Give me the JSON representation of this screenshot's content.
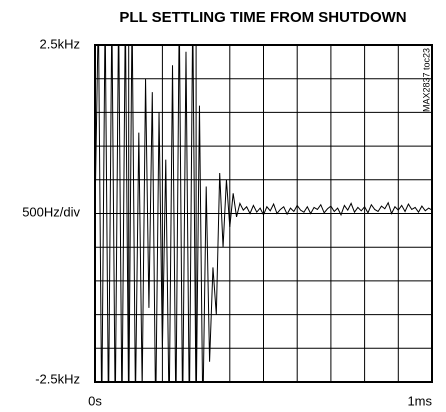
{
  "chart_data": {
    "type": "line",
    "title": "PLL SETTLING TIME FROM SHUTDOWN",
    "y_label": "500Hz/div",
    "note": "MAX2837 toc23",
    "xlim": [
      0,
      1
    ],
    "ylim": [
      -2.5,
      2.5
    ],
    "xticks": [
      {
        "value": 0,
        "label": "0s"
      },
      {
        "value": 1,
        "label": "1ms"
      }
    ],
    "yticks": [
      {
        "value": -2.5,
        "label": "-2.5kHz"
      },
      {
        "value": 2.5,
        "label": "2.5kHz"
      }
    ],
    "grid": {
      "x": [
        0,
        0.1,
        0.2,
        0.3,
        0.4,
        0.5,
        0.6,
        0.7,
        0.8,
        0.9,
        1
      ],
      "y": [
        -2.5,
        -2,
        -1.5,
        -1,
        -0.5,
        0,
        0.5,
        1,
        1.5,
        2,
        2.5
      ]
    },
    "color": "#000000",
    "x": [
      0,
      0.01,
      0.02,
      0.03,
      0.04,
      0.05,
      0.06,
      0.07,
      0.08,
      0.09,
      0.1,
      0.11,
      0.12,
      0.13,
      0.14,
      0.15,
      0.16,
      0.17,
      0.18,
      0.19,
      0.2,
      0.21,
      0.22,
      0.23,
      0.24,
      0.25,
      0.26,
      0.27,
      0.28,
      0.29,
      0.3,
      0.31,
      0.32,
      0.33,
      0.34,
      0.35,
      0.36,
      0.37,
      0.38,
      0.39,
      0.4,
      0.41,
      0.42,
      0.43,
      0.44,
      0.45,
      0.46,
      0.47,
      0.48,
      0.49,
      0.5,
      0.51,
      0.52,
      0.53,
      0.54,
      0.55,
      0.56,
      0.57,
      0.58,
      0.59,
      0.6,
      0.61,
      0.62,
      0.63,
      0.64,
      0.65,
      0.66,
      0.67,
      0.68,
      0.69,
      0.7,
      0.71,
      0.72,
      0.73,
      0.74,
      0.75,
      0.76,
      0.77,
      0.78,
      0.79,
      0.8,
      0.81,
      0.82,
      0.83,
      0.84,
      0.85,
      0.86,
      0.87,
      0.88,
      0.89,
      0.9,
      0.91,
      0.92,
      0.93,
      0.94,
      0.95,
      0.96,
      0.97,
      0.98,
      0.99,
      1
    ],
    "values": [
      0,
      3,
      -3,
      3,
      -3,
      3,
      -3,
      3,
      -3,
      3,
      -3,
      3,
      -2.8,
      1.2,
      -2.6,
      2,
      -1.4,
      1.8,
      -3,
      1.5,
      -2,
      0.8,
      -3,
      2.2,
      -3,
      3,
      -3,
      2.4,
      -3,
      3,
      -3,
      1.6,
      -3,
      0.4,
      -2.2,
      -0.8,
      -1.5,
      0.6,
      -0.5,
      0.5,
      -0.2,
      0.3,
      -0.05,
      0.15,
      0.05,
      0.1,
      0,
      0.12,
      0.02,
      0.08,
      -0.02,
      0.1,
      0.04,
      0.14,
      0,
      0.06,
      0.1,
      -0.01,
      0.08,
      0.03,
      0.12,
      0.05,
      0.02,
      0.1,
      0,
      0.09,
      0.06,
      0.13,
      0.01,
      0.07,
      0.11,
      0.03,
      0.08,
      -0.02,
      0.12,
      0.05,
      0.15,
      0.02,
      0.09,
      0.04,
      0.1,
      0.01,
      0.13,
      0.06,
      0.03,
      0.11,
      0.07,
      0.16,
      0,
      0.1,
      0.05,
      0.12,
      0.03,
      0.14,
      0.06,
      0.09,
      0.02,
      0.11,
      0.04,
      0.08,
      0.05
    ]
  }
}
